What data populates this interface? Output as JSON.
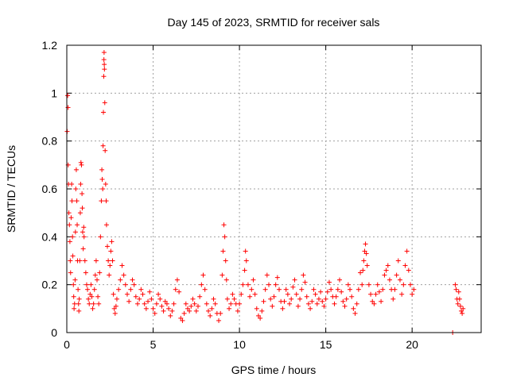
{
  "chart_data": {
    "type": "scatter",
    "title": "Day 145 of 2023, SRMTID for receiver sals",
    "xlabel": "GPS time / hours",
    "ylabel": "SRMTID / TECUs",
    "xlim": [
      0,
      24
    ],
    "ylim": [
      0,
      1.2
    ],
    "xticks": [
      0,
      5,
      10,
      15,
      20
    ],
    "xtick_labels": [
      "0",
      "5",
      "10",
      "15",
      "20"
    ],
    "yticks": [
      0,
      0.2,
      0.4,
      0.6,
      0.8,
      1.0,
      1.2
    ],
    "ytick_labels": [
      "0",
      "0.2",
      "0.4",
      "0.6",
      "0.8",
      "1",
      "1.2"
    ],
    "grid": true,
    "marker": "+",
    "color": "#ff0000",
    "series": [
      {
        "name": "sals",
        "points": [
          [
            0.02,
            0.84
          ],
          [
            0.05,
            0.99
          ],
          [
            0.07,
            0.94
          ],
          [
            0.08,
            0.7
          ],
          [
            0.1,
            0.62
          ],
          [
            0.12,
            0.5
          ],
          [
            0.15,
            0.45
          ],
          [
            0.18,
            0.38
          ],
          [
            0.2,
            0.3
          ],
          [
            0.22,
            0.25
          ],
          [
            0.25,
            0.48
          ],
          [
            0.28,
            0.62
          ],
          [
            0.3,
            0.55
          ],
          [
            0.33,
            0.4
          ],
          [
            0.35,
            0.32
          ],
          [
            0.38,
            0.2
          ],
          [
            0.4,
            0.15
          ],
          [
            0.42,
            0.1
          ],
          [
            0.45,
            0.12
          ],
          [
            0.48,
            0.22
          ],
          [
            0.5,
            0.42
          ],
          [
            0.52,
            0.6
          ],
          [
            0.55,
            0.68
          ],
          [
            0.58,
            0.55
          ],
          [
            0.6,
            0.45
          ],
          [
            0.62,
            0.3
          ],
          [
            0.65,
            0.18
          ],
          [
            0.68,
            0.12
          ],
          [
            0.7,
            0.09
          ],
          [
            0.72,
            0.14
          ],
          [
            0.75,
            0.3
          ],
          [
            0.78,
            0.5
          ],
          [
            0.8,
            0.62
          ],
          [
            0.82,
            0.71
          ],
          [
            0.85,
            0.7
          ],
          [
            0.88,
            0.58
          ],
          [
            0.9,
            0.52
          ],
          [
            0.92,
            0.42
          ],
          [
            0.95,
            0.35
          ],
          [
            0.98,
            0.44
          ],
          [
            1.0,
            0.4
          ],
          [
            1.05,
            0.3
          ],
          [
            1.1,
            0.25
          ],
          [
            1.15,
            0.2
          ],
          [
            1.2,
            0.18
          ],
          [
            1.25,
            0.14
          ],
          [
            1.3,
            0.12
          ],
          [
            1.35,
            0.16
          ],
          [
            1.4,
            0.2
          ],
          [
            1.45,
            0.15
          ],
          [
            1.5,
            0.1
          ],
          [
            1.55,
            0.12
          ],
          [
            1.6,
            0.18
          ],
          [
            1.65,
            0.24
          ],
          [
            1.7,
            0.3
          ],
          [
            1.75,
            0.22
          ],
          [
            1.8,
            0.15
          ],
          [
            1.85,
            0.12
          ],
          [
            1.9,
            0.25
          ],
          [
            1.95,
            0.4
          ],
          [
            2.0,
            0.55
          ],
          [
            2.03,
            0.68
          ],
          [
            2.05,
            0.64
          ],
          [
            2.08,
            0.6
          ],
          [
            2.1,
            0.78
          ],
          [
            2.12,
            0.92
          ],
          [
            2.14,
            1.07
          ],
          [
            2.15,
            1.14
          ],
          [
            2.16,
            1.17
          ],
          [
            2.17,
            1.12
          ],
          [
            2.18,
            1.1
          ],
          [
            2.2,
            0.96
          ],
          [
            2.22,
            0.76
          ],
          [
            2.25,
            0.62
          ],
          [
            2.28,
            0.55
          ],
          [
            2.3,
            0.45
          ],
          [
            2.35,
            0.36
          ],
          [
            2.4,
            0.3
          ],
          [
            2.45,
            0.24
          ],
          [
            2.5,
            0.28
          ],
          [
            2.55,
            0.34
          ],
          [
            2.6,
            0.38
          ],
          [
            2.65,
            0.3
          ],
          [
            2.7,
            0.16
          ],
          [
            2.75,
            0.1
          ],
          [
            2.8,
            0.08
          ],
          [
            2.85,
            0.11
          ],
          [
            2.9,
            0.14
          ],
          [
            3.0,
            0.18
          ],
          [
            3.1,
            0.22
          ],
          [
            3.2,
            0.28
          ],
          [
            3.3,
            0.24
          ],
          [
            3.4,
            0.2
          ],
          [
            3.5,
            0.16
          ],
          [
            3.6,
            0.13
          ],
          [
            3.7,
            0.18
          ],
          [
            3.8,
            0.22
          ],
          [
            3.9,
            0.2
          ],
          [
            4.0,
            0.15
          ],
          [
            4.1,
            0.12
          ],
          [
            4.2,
            0.14
          ],
          [
            4.3,
            0.18
          ],
          [
            4.4,
            0.16
          ],
          [
            4.5,
            0.12
          ],
          [
            4.6,
            0.1
          ],
          [
            4.7,
            0.13
          ],
          [
            4.8,
            0.17
          ],
          [
            4.9,
            0.14
          ],
          [
            5.0,
            0.1
          ],
          [
            5.1,
            0.08
          ],
          [
            5.2,
            0.12
          ],
          [
            5.3,
            0.16
          ],
          [
            5.4,
            0.14
          ],
          [
            5.5,
            0.11
          ],
          [
            5.6,
            0.09
          ],
          [
            5.7,
            0.13
          ],
          [
            5.8,
            0.12
          ],
          [
            5.9,
            0.1
          ],
          [
            6.0,
            0.07
          ],
          [
            6.1,
            0.09
          ],
          [
            6.2,
            0.12
          ],
          [
            6.3,
            0.18
          ],
          [
            6.4,
            0.22
          ],
          [
            6.5,
            0.17
          ],
          [
            6.6,
            0.06
          ],
          [
            6.7,
            0.05
          ],
          [
            6.8,
            0.08
          ],
          [
            6.9,
            0.12
          ],
          [
            7.0,
            0.1
          ],
          [
            7.1,
            0.09
          ],
          [
            7.2,
            0.11
          ],
          [
            7.3,
            0.14
          ],
          [
            7.4,
            0.12
          ],
          [
            7.5,
            0.09
          ],
          [
            7.6,
            0.11
          ],
          [
            7.7,
            0.15
          ],
          [
            7.8,
            0.2
          ],
          [
            7.9,
            0.24
          ],
          [
            8.0,
            0.18
          ],
          [
            8.1,
            0.12
          ],
          [
            8.2,
            0.09
          ],
          [
            8.3,
            0.07
          ],
          [
            8.4,
            0.1
          ],
          [
            8.5,
            0.14
          ],
          [
            8.6,
            0.12
          ],
          [
            8.7,
            0.08
          ],
          [
            8.8,
            0.05
          ],
          [
            8.9,
            0.08
          ],
          [
            9.0,
            0.24
          ],
          [
            9.05,
            0.34
          ],
          [
            9.1,
            0.45
          ],
          [
            9.15,
            0.4
          ],
          [
            9.2,
            0.3
          ],
          [
            9.25,
            0.22
          ],
          [
            9.3,
            0.14
          ],
          [
            9.4,
            0.1
          ],
          [
            9.5,
            0.12
          ],
          [
            9.6,
            0.16
          ],
          [
            9.7,
            0.14
          ],
          [
            9.8,
            0.12
          ],
          [
            9.9,
            0.09
          ],
          [
            10.0,
            0.12
          ],
          [
            10.1,
            0.16
          ],
          [
            10.2,
            0.2
          ],
          [
            10.3,
            0.26
          ],
          [
            10.35,
            0.34
          ],
          [
            10.4,
            0.3
          ],
          [
            10.5,
            0.2
          ],
          [
            10.6,
            0.15
          ],
          [
            10.7,
            0.18
          ],
          [
            10.8,
            0.22
          ],
          [
            10.9,
            0.16
          ],
          [
            11.0,
            0.1
          ],
          [
            11.1,
            0.07
          ],
          [
            11.2,
            0.06
          ],
          [
            11.3,
            0.09
          ],
          [
            11.4,
            0.13
          ],
          [
            11.5,
            0.18
          ],
          [
            11.6,
            0.24
          ],
          [
            11.7,
            0.2
          ],
          [
            11.8,
            0.14
          ],
          [
            11.9,
            0.11
          ],
          [
            12.0,
            0.15
          ],
          [
            12.1,
            0.2
          ],
          [
            12.2,
            0.23
          ],
          [
            12.3,
            0.18
          ],
          [
            12.4,
            0.13
          ],
          [
            12.5,
            0.1
          ],
          [
            12.6,
            0.13
          ],
          [
            12.7,
            0.18
          ],
          [
            12.8,
            0.16
          ],
          [
            12.9,
            0.12
          ],
          [
            13.0,
            0.14
          ],
          [
            13.1,
            0.19
          ],
          [
            13.2,
            0.22
          ],
          [
            13.3,
            0.16
          ],
          [
            13.4,
            0.11
          ],
          [
            13.5,
            0.14
          ],
          [
            13.6,
            0.18
          ],
          [
            13.7,
            0.24
          ],
          [
            13.8,
            0.21
          ],
          [
            13.9,
            0.15
          ],
          [
            14.0,
            0.12
          ],
          [
            14.1,
            0.1
          ],
          [
            14.2,
            0.13
          ],
          [
            14.3,
            0.18
          ],
          [
            14.4,
            0.16
          ],
          [
            14.5,
            0.12
          ],
          [
            14.6,
            0.14
          ],
          [
            14.7,
            0.17
          ],
          [
            14.8,
            0.13
          ],
          [
            14.9,
            0.11
          ],
          [
            15.0,
            0.14
          ],
          [
            15.1,
            0.17
          ],
          [
            15.2,
            0.21
          ],
          [
            15.3,
            0.18
          ],
          [
            15.4,
            0.15
          ],
          [
            15.5,
            0.12
          ],
          [
            15.6,
            0.15
          ],
          [
            15.7,
            0.18
          ],
          [
            15.8,
            0.22
          ],
          [
            15.9,
            0.17
          ],
          [
            16.0,
            0.13
          ],
          [
            16.1,
            0.11
          ],
          [
            16.2,
            0.14
          ],
          [
            16.3,
            0.2
          ],
          [
            16.4,
            0.18
          ],
          [
            16.5,
            0.15
          ],
          [
            16.6,
            0.1
          ],
          [
            16.7,
            0.08
          ],
          [
            16.8,
            0.12
          ],
          [
            16.9,
            0.18
          ],
          [
            17.0,
            0.25
          ],
          [
            17.1,
            0.2
          ],
          [
            17.15,
            0.26
          ],
          [
            17.2,
            0.3
          ],
          [
            17.25,
            0.34
          ],
          [
            17.3,
            0.37
          ],
          [
            17.35,
            0.33
          ],
          [
            17.4,
            0.28
          ],
          [
            17.5,
            0.2
          ],
          [
            17.6,
            0.16
          ],
          [
            17.7,
            0.13
          ],
          [
            17.8,
            0.12
          ],
          [
            17.9,
            0.16
          ],
          [
            18.0,
            0.2
          ],
          [
            18.1,
            0.17
          ],
          [
            18.2,
            0.13
          ],
          [
            18.3,
            0.18
          ],
          [
            18.4,
            0.24
          ],
          [
            18.5,
            0.26
          ],
          [
            18.6,
            0.28
          ],
          [
            18.7,
            0.22
          ],
          [
            18.8,
            0.18
          ],
          [
            18.9,
            0.14
          ],
          [
            19.0,
            0.18
          ],
          [
            19.1,
            0.24
          ],
          [
            19.2,
            0.3
          ],
          [
            19.3,
            0.22
          ],
          [
            19.4,
            0.16
          ],
          [
            19.5,
            0.2
          ],
          [
            19.6,
            0.28
          ],
          [
            19.7,
            0.34
          ],
          [
            19.8,
            0.26
          ],
          [
            19.9,
            0.2
          ],
          [
            20.0,
            0.16
          ],
          [
            20.1,
            0.18
          ],
          [
            22.35,
            0.0
          ],
          [
            22.5,
            0.2
          ],
          [
            22.55,
            0.18
          ],
          [
            22.6,
            0.14
          ],
          [
            22.65,
            0.12
          ],
          [
            22.7,
            0.17
          ],
          [
            22.75,
            0.14
          ],
          [
            22.8,
            0.11
          ],
          [
            22.85,
            0.09
          ],
          [
            22.9,
            0.08
          ],
          [
            22.95,
            0.1
          ]
        ]
      }
    ]
  }
}
